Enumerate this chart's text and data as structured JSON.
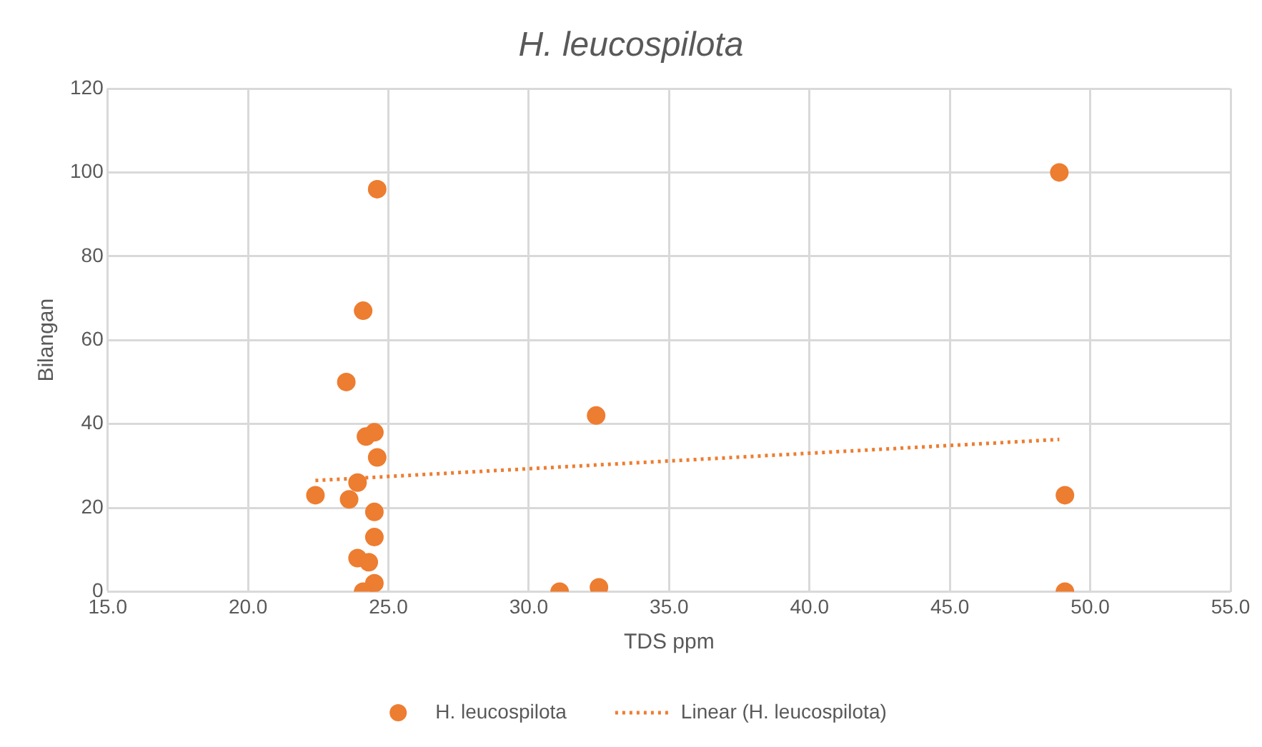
{
  "chart_data": {
    "type": "scatter",
    "title": "H. leucospilota",
    "xlabel": "TDS ppm",
    "ylabel": "Bilangan",
    "xlim": [
      15,
      55
    ],
    "xticks": [
      {
        "value": 15,
        "label": "15.0"
      },
      {
        "value": 20,
        "label": "20.0"
      },
      {
        "value": 25,
        "label": "25.0"
      },
      {
        "value": 30,
        "label": "30.0"
      },
      {
        "value": 35,
        "label": "35.0"
      },
      {
        "value": 40,
        "label": "40.0"
      },
      {
        "value": 45,
        "label": "45.0"
      },
      {
        "value": 50,
        "label": "50.0"
      },
      {
        "value": 55,
        "label": "55.0"
      }
    ],
    "ylim": [
      0,
      120
    ],
    "yticks": [
      0,
      20,
      40,
      60,
      80,
      100,
      120
    ],
    "grid": true,
    "legend": "bottom",
    "series": [
      {
        "name": "H. leucospilota",
        "marker": "circle",
        "color": "#ed7d31",
        "x": [
          24.6,
          24.1,
          23.5,
          24.2,
          24.5,
          24.6,
          22.4,
          23.9,
          23.6,
          24.5,
          24.5,
          23.9,
          24.3,
          24.5,
          24.1,
          32.4,
          31.1,
          32.5,
          48.9,
          49.1,
          49.1
        ],
        "values": [
          96,
          67,
          50,
          37,
          38,
          32,
          23,
          26,
          22,
          19,
          13,
          8,
          7,
          2,
          0,
          42,
          0,
          1,
          100,
          23,
          0
        ]
      },
      {
        "name": "Linear (H. leucospilota)",
        "type": "line",
        "marker": "none",
        "line_style": "dotted",
        "color": "#ed7d31",
        "x": [
          22.4,
          48.9
        ],
        "values": [
          26.5,
          36.3
        ]
      }
    ]
  }
}
